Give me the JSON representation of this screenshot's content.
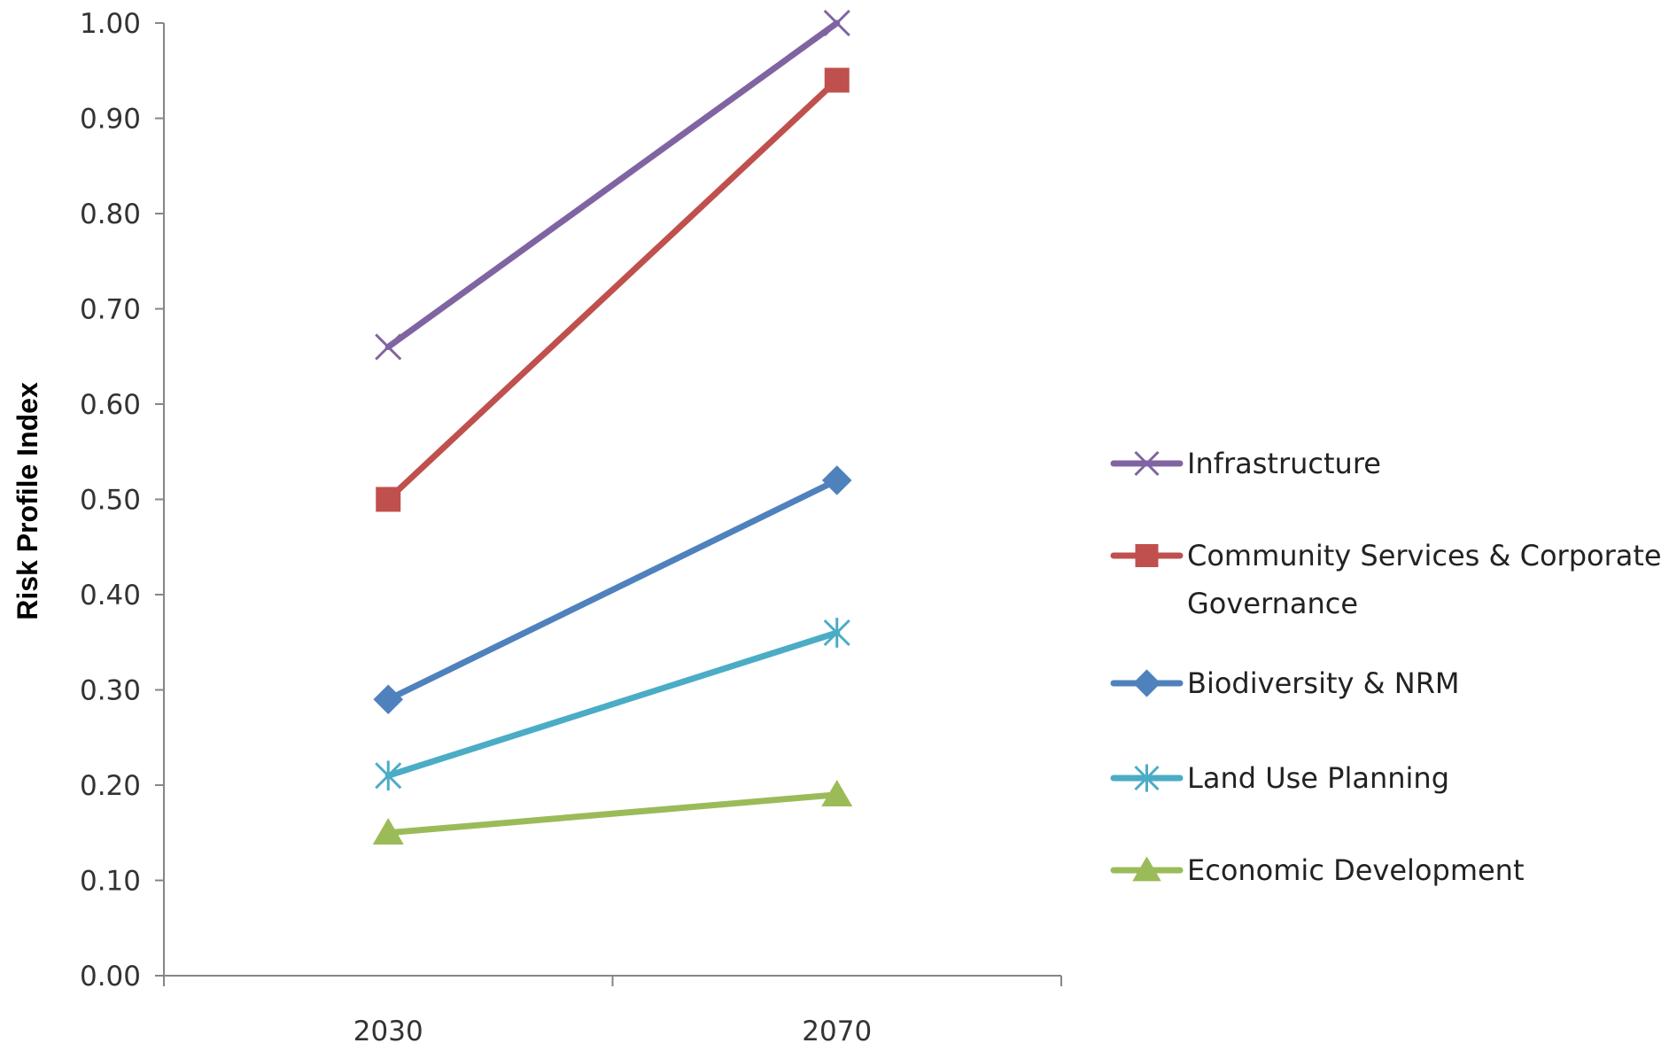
{
  "chart_data": {
    "type": "line",
    "categories": [
      "2030",
      "2070"
    ],
    "ylabel": "Risk Profile Index",
    "xlabel": "",
    "ylim": [
      0,
      1
    ],
    "yticks": [
      "0.00",
      "0.10",
      "0.20",
      "0.30",
      "0.40",
      "0.50",
      "0.60",
      "0.70",
      "0.80",
      "0.90",
      "1.00"
    ],
    "grid": false,
    "legend_position": "right",
    "series": [
      {
        "name": "Infrastructure",
        "values": [
          0.66,
          1.0
        ],
        "color": "#8064A2",
        "marker": "x"
      },
      {
        "name": "Community Services & Corporate Governance",
        "values": [
          0.5,
          0.94
        ],
        "color": "#C0504D",
        "marker": "square"
      },
      {
        "name": "Biodiversity & NRM",
        "values": [
          0.29,
          0.52
        ],
        "color": "#4F81BD",
        "marker": "diamond"
      },
      {
        "name": "Land Use Planning",
        "values": [
          0.21,
          0.36
        ],
        "color": "#4BACC6",
        "marker": "star"
      },
      {
        "name": "Economic Development",
        "values": [
          0.15,
          0.19
        ],
        "color": "#9BBB59",
        "marker": "triangle"
      }
    ]
  }
}
